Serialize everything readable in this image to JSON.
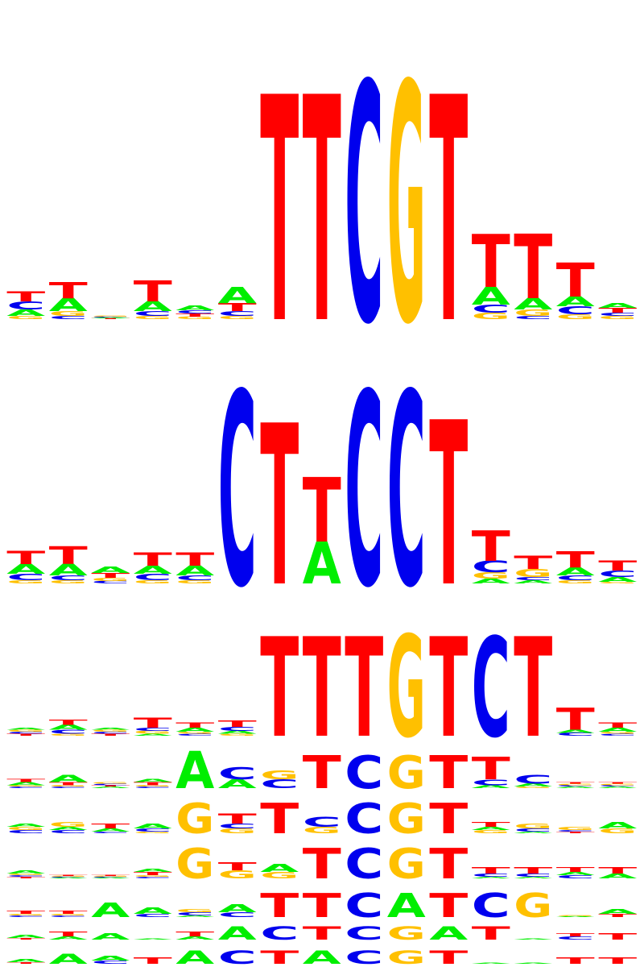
{
  "colors": {
    "A": "#00ee00",
    "C": "#0000ee",
    "G": "#ffc000",
    "T": "#ff0000"
  },
  "chart_data": {
    "type": "sequence-logo",
    "alphabet": [
      "A",
      "C",
      "G",
      "T"
    ],
    "max_bits": 2,
    "motifs": [
      {
        "positions": [
          {
            "T": 0.06,
            "C": 0.05,
            "A": 0.04,
            "G": 0.02
          },
          {
            "T": 0.1,
            "A": 0.08,
            "G": 0.03,
            "C": 0.02
          },
          {
            "T": 0.005,
            "A": 0.005,
            "C": 0.005,
            "G": 0.005
          },
          {
            "T": 0.13,
            "A": 0.06,
            "C": 0.03,
            "G": 0.02
          },
          {
            "A": 0.03,
            "T": 0.02,
            "C": 0.02,
            "G": 0.015
          },
          {
            "A": 0.1,
            "T": 0.05,
            "C": 0.03,
            "G": 0.02
          },
          {
            "T": 1.4
          },
          {
            "T": 1.4
          },
          {
            "C": 1.48
          },
          {
            "G": 1.48
          },
          {
            "T": 1.4
          },
          {
            "T": 0.33,
            "A": 0.11,
            "C": 0.05,
            "G": 0.04
          },
          {
            "T": 0.4,
            "A": 0.07,
            "G": 0.04,
            "C": 0.02
          },
          {
            "T": 0.21,
            "A": 0.06,
            "C": 0.05,
            "G": 0.03
          },
          {
            "T": 0.03,
            "A": 0.03,
            "G": 0.02,
            "C": 0.02
          }
        ]
      },
      {
        "positions": [
          {
            "T": 0.08,
            "A": 0.06,
            "C": 0.04,
            "G": 0.02
          },
          {
            "T": 0.11,
            "A": 0.07,
            "C": 0.03,
            "G": 0.02
          },
          {
            "A": 0.04,
            "T": 0.03,
            "G": 0.02,
            "C": 0.015
          },
          {
            "T": 0.08,
            "A": 0.05,
            "C": 0.04,
            "G": 0.02
          },
          {
            "T": 0.08,
            "A": 0.06,
            "C": 0.03,
            "G": 0.02
          },
          {
            "C": 1.2
          },
          {
            "T": 1.0
          },
          {
            "T": 0.4,
            "A": 0.26
          },
          {
            "C": 1.2
          },
          {
            "C": 1.2
          },
          {
            "T": 1.02
          },
          {
            "T": 0.19,
            "C": 0.07,
            "G": 0.04,
            "A": 0.03
          },
          {
            "T": 0.08,
            "G": 0.05,
            "A": 0.02,
            "C": 0.02
          },
          {
            "T": 0.1,
            "A": 0.05,
            "C": 0.03,
            "G": 0.02
          },
          {
            "T": 0.06,
            "C": 0.04,
            "A": 0.03,
            "G": 0.01
          }
        ]
      },
      {
        "positions": [
          {
            "T": 0.02,
            "C": 0.02,
            "G": 0.02,
            "A": 0.02
          },
          {
            "A": 0.05,
            "T": 0.05,
            "C": 0.04,
            "G": 0.02
          },
          {
            "T": 0.02,
            "C": 0.02,
            "G": 0.02,
            "A": 0.02
          },
          {
            "T": 0.1,
            "G": 0.03,
            "C": 0.03,
            "A": 0.02
          },
          {
            "T": 0.05,
            "A": 0.04,
            "C": 0.02,
            "G": 0.02
          },
          {
            "T": 0.06,
            "C": 0.04,
            "A": 0.03,
            "G": 0.02
          },
          {
            "T": 0.99
          },
          {
            "T": 0.99
          },
          {
            "T": 0.99
          },
          {
            "G": 1.01
          },
          {
            "T": 0.99
          },
          {
            "C": 0.99
          },
          {
            "T": 0.99
          },
          {
            "T": 0.22,
            "C": 0.03,
            "A": 0.03
          },
          {
            "T": 0.05,
            "A": 0.04,
            "C": 0.02,
            "G": 0.02
          }
        ]
      },
      {
        "positions": [
          {
            "A": 0.02,
            "T": 0.02,
            "C": 0.01,
            "G": 0.01
          },
          {
            "A": 0.05,
            "T": 0.02,
            "C": 0.01,
            "G": 0.01
          },
          {
            "A": 0.01,
            "T": 0.01,
            "C": 0.01,
            "G": 0.01
          },
          {
            "T": 0.02,
            "A": 0.02,
            "C": 0.01,
            "G": 0.01
          },
          {
            "A": 0.25
          },
          {
            "C": 0.08,
            "A": 0.06
          },
          {
            "C": 0.06,
            "G": 0.06
          },
          {
            "T": 0.22
          },
          {
            "C": 0.22
          },
          {
            "G": 0.22
          },
          {
            "T": 0.22
          },
          {
            "T": 0.15,
            "C": 0.04,
            "A": 0.02
          },
          {
            "C": 0.06,
            "A": 0.02,
            "G": 0.01
          },
          {
            "A": 0.01,
            "C": 0.01,
            "G": 0.01,
            "T": 0.01
          },
          {
            "A": 0.01,
            "C": 0.01,
            "G": 0.01,
            "T": 0.01
          }
        ]
      },
      {
        "positions": [
          {
            "C": 0.02,
            "G": 0.02,
            "A": 0.02
          },
          {
            "G": 0.03,
            "C": 0.02,
            "A": 0.02
          },
          {
            "T": 0.03,
            "A": 0.02,
            "C": 0.01
          },
          {
            "A": 0.03,
            "C": 0.02,
            "G": 0.01
          },
          {
            "G": 0.19
          },
          {
            "T": 0.06,
            "G": 0.03,
            "C": 0.03
          },
          {
            "T": 0.19
          },
          {
            "C": 0.06,
            "G": 0.04
          },
          {
            "C": 0.19
          },
          {
            "G": 0.19
          },
          {
            "T": 0.19
          },
          {
            "T": 0.03,
            "G": 0.02,
            "A": 0.02
          },
          {
            "G": 0.03,
            "C": 0.02,
            "A": 0.01
          },
          {
            "G": 0.02,
            "T": 0.01,
            "C": 0.01
          },
          {
            "A": 0.04,
            "G": 0.03
          }
        ]
      },
      {
        "positions": [
          {
            "A": 0.02,
            "T": 0.01,
            "C": 0.01,
            "G": 0.01
          },
          {
            "A": 0.005,
            "C": 0.005,
            "G": 0.005,
            "T": 0.005
          },
          {
            "A": 0.005,
            "C": 0.005,
            "G": 0.005,
            "T": 0.005
          },
          {
            "T": 0.02,
            "A": 0.02,
            "C": 0.01,
            "G": 0.01
          },
          {
            "G": 0.19
          },
          {
            "G": 0.05,
            "T": 0.05
          },
          {
            "A": 0.05,
            "G": 0.04
          },
          {
            "T": 0.19
          },
          {
            "C": 0.19
          },
          {
            "G": 0.19
          },
          {
            "T": 0.19
          },
          {
            "T": 0.04,
            "C": 0.02,
            "A": 0.01
          },
          {
            "T": 0.04,
            "C": 0.02,
            "A": 0.01
          },
          {
            "T": 0.03,
            "C": 0.02,
            "A": 0.02
          },
          {
            "T": 0.04,
            "A": 0.03
          }
        ]
      },
      {
        "positions": [
          {
            "T": 0.02,
            "C": 0.01,
            "G": 0.01
          },
          {
            "T": 0.02,
            "C": 0.01,
            "G": 0.01
          },
          {
            "A": 0.09
          },
          {
            "A": 0.04,
            "C": 0.02
          },
          {
            "C": 0.02,
            "G": 0.02,
            "A": 0.01
          },
          {
            "A": 0.05,
            "C": 0.03
          },
          {
            "T": 0.15
          },
          {
            "T": 0.15
          },
          {
            "C": 0.15
          },
          {
            "A": 0.15
          },
          {
            "T": 0.15
          },
          {
            "C": 0.15
          },
          {
            "G": 0.15
          },
          {
            "A": 0.005,
            "G": 0.005
          },
          {
            "A": 0.03,
            "T": 0.02
          }
        ]
      },
      {
        "positions": [
          {
            "A": 0.02,
            "T": 0.01
          },
          {
            "T": 0.03,
            "A": 0.02
          },
          {
            "A": 0.04
          },
          {
            "A": 0.005
          },
          {
            "T": 0.03,
            "A": 0.02
          },
          {
            "A": 0.08
          },
          {
            "C": 0.08
          },
          {
            "T": 0.08
          },
          {
            "C": 0.08
          },
          {
            "G": 0.08
          },
          {
            "A": 0.08
          },
          {
            "T": 0.08
          },
          {
            "A": 0.005
          },
          {
            "C": 0.02,
            "T": 0.02
          },
          {
            "T": 0.04
          }
        ]
      },
      {
        "positions": [
          {
            "A": 0.02,
            "T": 0.01
          },
          {
            "A": 0.06
          },
          {
            "A": 0.03,
            "C": 0.02
          },
          {
            "T": 0.04
          },
          {
            "A": 0.08
          },
          {
            "C": 0.08
          },
          {
            "T": 0.08
          },
          {
            "A": 0.08
          },
          {
            "C": 0.08
          },
          {
            "G": 0.08
          },
          {
            "T": 0.08
          },
          {
            "A": 0.005
          },
          {
            "A": 0.005
          },
          {
            "T": 0.04
          },
          {
            "T": 0.04
          }
        ]
      }
    ]
  }
}
